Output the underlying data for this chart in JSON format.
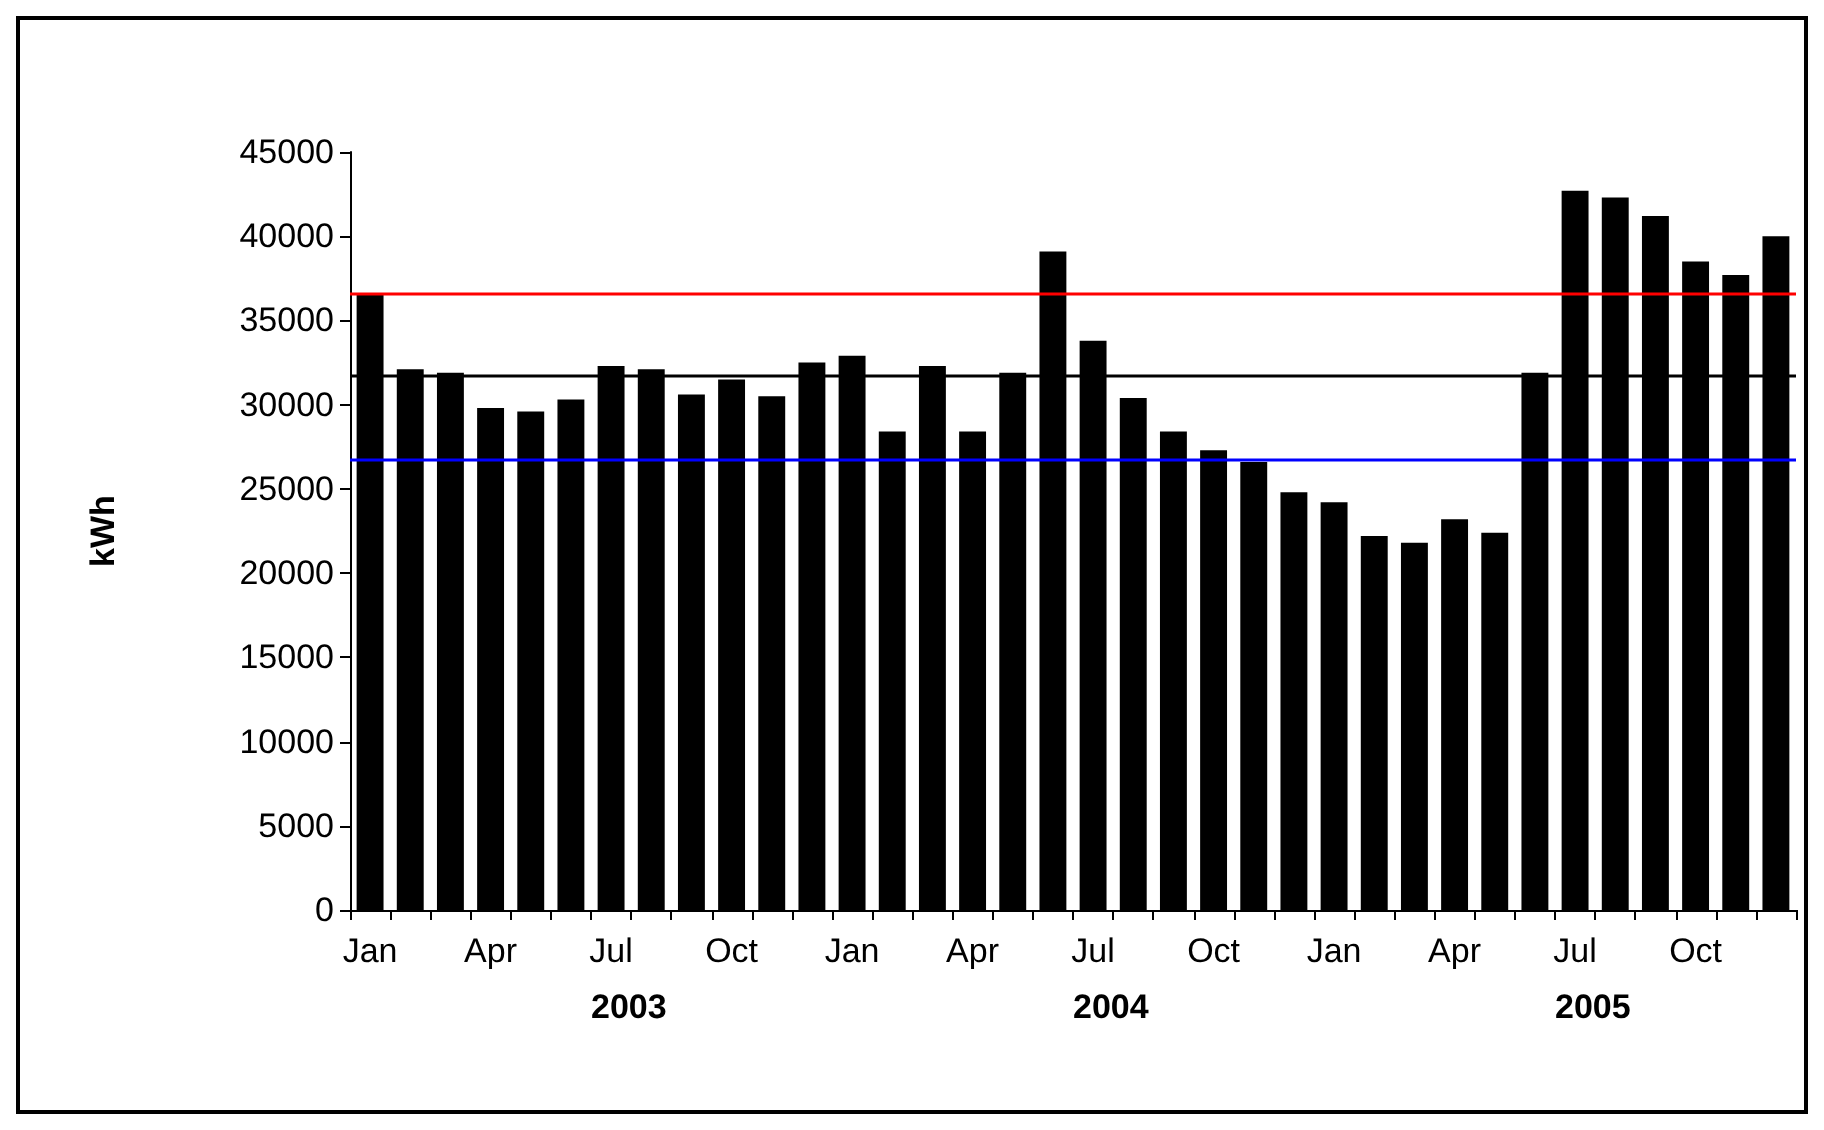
{
  "chart_data": {
    "type": "bar",
    "ylabel": "kWh",
    "categories": [
      "Jan",
      null,
      null,
      "Apr",
      null,
      null,
      "Jul",
      null,
      null,
      "Oct",
      null,
      null,
      "Jan",
      null,
      null,
      "Apr",
      null,
      null,
      "Jul",
      null,
      null,
      "Oct",
      null,
      null,
      "Jan",
      null,
      null,
      "Apr",
      null,
      null,
      "Jul",
      null,
      null,
      "Oct",
      null,
      null
    ],
    "values": [
      36600,
      32100,
      31900,
      29800,
      29600,
      30300,
      32300,
      32100,
      30600,
      31500,
      30500,
      32500,
      32900,
      28400,
      32300,
      28400,
      31900,
      39100,
      33800,
      30400,
      28400,
      27300,
      26600,
      24800,
      24200,
      22200,
      21800,
      23200,
      22400,
      31900,
      42700,
      42300,
      41200,
      38500,
      37700,
      40000
    ],
    "color": "#000000",
    "ylim": [
      0,
      45000
    ],
    "yticks": [
      0,
      5000,
      10000,
      15000,
      20000,
      25000,
      30000,
      35000,
      40000,
      45000
    ],
    "grid": false,
    "annotations": [
      "2003",
      "2004",
      "2005"
    ],
    "ref_lines": [
      {
        "axis": "y",
        "value": 36600,
        "color": "#ff0000"
      },
      {
        "axis": "y",
        "value": 31700,
        "color": "#000000"
      },
      {
        "axis": "y",
        "value": 26700,
        "color": "#0000ff"
      }
    ]
  }
}
